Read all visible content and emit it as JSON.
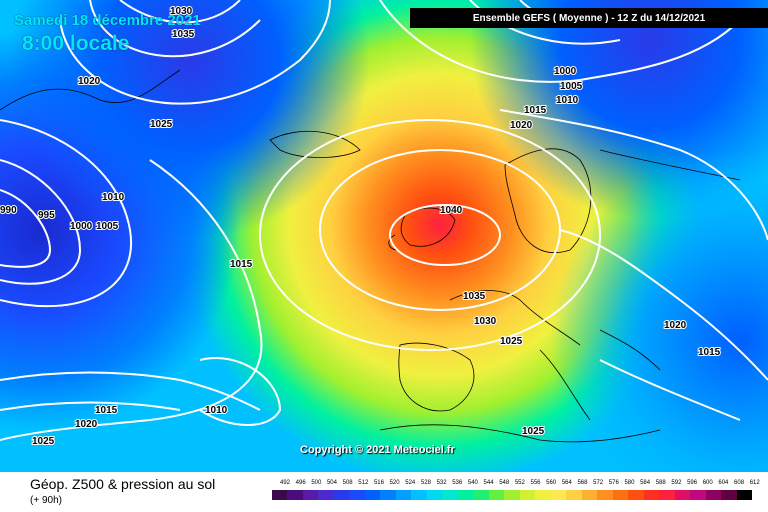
{
  "header": {
    "date": "Samedi 18 décembre 2021",
    "time": "8:00 locale",
    "model": "Ensemble GEFS  ( Moyenne )  -  12 Z du 14/12/2021"
  },
  "copyright": "Copyright © 2021 Meteociel.fr",
  "legend": {
    "title": "Géop. Z500 & pression au sol",
    "subtitle": "(+ 90h)",
    "scale": [
      "492",
      "496",
      "500",
      "504",
      "508",
      "512",
      "516",
      "520",
      "524",
      "528",
      "532",
      "536",
      "540",
      "544",
      "548",
      "552",
      "556",
      "560",
      "564",
      "568",
      "572",
      "576",
      "580",
      "584",
      "588",
      "592",
      "596",
      "600",
      "604",
      "608",
      "612"
    ],
    "colors": [
      "#3a0a4a",
      "#4b0d7d",
      "#5a1aa8",
      "#4b2ad0",
      "#2a3ae8",
      "#1a4aff",
      "#0060ff",
      "#0080ff",
      "#00a0ff",
      "#00c0ff",
      "#00d8f0",
      "#00e8d0",
      "#00f0a0",
      "#20f070",
      "#60f040",
      "#a0f030",
      "#d0f030",
      "#f0f040",
      "#ffe850",
      "#ffd040",
      "#ffb030",
      "#ff9020",
      "#ff7010",
      "#ff5010",
      "#ff3020",
      "#ff2040",
      "#e01060",
      "#c00880",
      "#900060",
      "#600040",
      "#000000"
    ]
  },
  "isobars": [
    {
      "label": "1030"
    },
    {
      "label": "1035"
    },
    {
      "label": "1020"
    },
    {
      "label": "1025"
    },
    {
      "label": "1010"
    },
    {
      "label": "990"
    },
    {
      "label": "995"
    },
    {
      "label": "1000"
    },
    {
      "label": "1005"
    },
    {
      "label": "1015"
    },
    {
      "label": "1040"
    },
    {
      "label": "1035"
    },
    {
      "label": "1030"
    },
    {
      "label": "1025"
    },
    {
      "label": "1000"
    },
    {
      "label": "1005"
    },
    {
      "label": "1010"
    },
    {
      "label": "1015"
    },
    {
      "label": "1020"
    },
    {
      "label": "1020"
    },
    {
      "label": "1015"
    },
    {
      "label": "1015"
    },
    {
      "label": "1010"
    },
    {
      "label": "1015"
    },
    {
      "label": "1020"
    },
    {
      "label": "1025"
    },
    {
      "label": "1025"
    }
  ]
}
